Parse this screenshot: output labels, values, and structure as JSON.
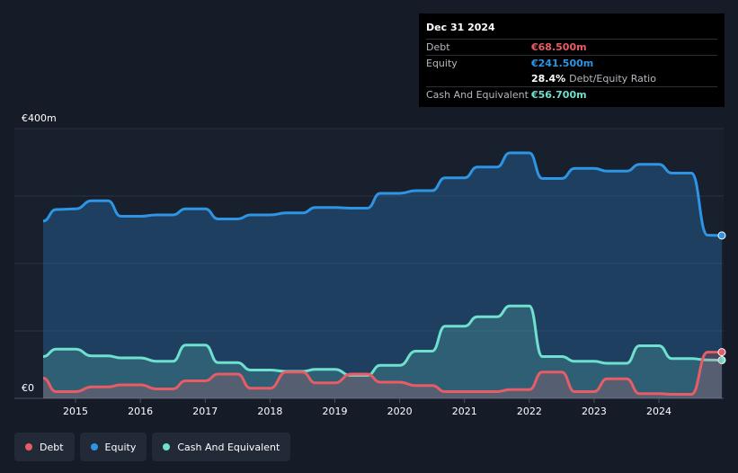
{
  "chart_data": {
    "type": "area",
    "ylabel_top": "€400m",
    "ylabel_bottom": "€0",
    "ylim": [
      0,
      400
    ],
    "x_ticks": [
      "2015",
      "2016",
      "2017",
      "2018",
      "2019",
      "2020",
      "2021",
      "2022",
      "2023",
      "2024"
    ],
    "x_range": [
      2014.5,
      2024.97
    ],
    "colors": {
      "debt": "#e85c66",
      "equity": "#2d95e3",
      "cash": "#6fe0cf"
    },
    "series": [
      {
        "name": "Equity",
        "key": "equity",
        "points": [
          [
            2014.5,
            263
          ],
          [
            2014.7,
            280
          ],
          [
            2015.0,
            281
          ],
          [
            2015.25,
            293
          ],
          [
            2015.5,
            293
          ],
          [
            2015.7,
            270
          ],
          [
            2016.0,
            270
          ],
          [
            2016.25,
            272
          ],
          [
            2016.5,
            272
          ],
          [
            2016.7,
            281
          ],
          [
            2017.0,
            281
          ],
          [
            2017.2,
            266
          ],
          [
            2017.5,
            266
          ],
          [
            2017.7,
            272
          ],
          [
            2018.0,
            272
          ],
          [
            2018.25,
            275
          ],
          [
            2018.5,
            275
          ],
          [
            2018.7,
            283
          ],
          [
            2019.0,
            283
          ],
          [
            2019.25,
            282
          ],
          [
            2019.5,
            282
          ],
          [
            2019.7,
            304
          ],
          [
            2020.0,
            304
          ],
          [
            2020.25,
            308
          ],
          [
            2020.5,
            308
          ],
          [
            2020.7,
            327
          ],
          [
            2021.0,
            327
          ],
          [
            2021.2,
            343
          ],
          [
            2021.5,
            343
          ],
          [
            2021.7,
            364
          ],
          [
            2022.0,
            364
          ],
          [
            2022.2,
            326
          ],
          [
            2022.5,
            326
          ],
          [
            2022.7,
            341
          ],
          [
            2023.0,
            341
          ],
          [
            2023.2,
            337
          ],
          [
            2023.5,
            337
          ],
          [
            2023.7,
            347
          ],
          [
            2024.0,
            347
          ],
          [
            2024.2,
            334
          ],
          [
            2024.5,
            334
          ],
          [
            2024.75,
            242
          ],
          [
            2024.97,
            241.5
          ]
        ]
      },
      {
        "name": "Cash And Equivalent",
        "key": "cash",
        "points": [
          [
            2014.5,
            62
          ],
          [
            2014.7,
            73
          ],
          [
            2015.0,
            73
          ],
          [
            2015.25,
            63
          ],
          [
            2015.5,
            63
          ],
          [
            2015.7,
            60
          ],
          [
            2016.0,
            60
          ],
          [
            2016.25,
            55
          ],
          [
            2016.5,
            55
          ],
          [
            2016.7,
            79
          ],
          [
            2017.0,
            79
          ],
          [
            2017.2,
            53
          ],
          [
            2017.5,
            53
          ],
          [
            2017.7,
            42
          ],
          [
            2018.0,
            42
          ],
          [
            2018.25,
            40
          ],
          [
            2018.5,
            40
          ],
          [
            2018.7,
            43
          ],
          [
            2019.0,
            43
          ],
          [
            2019.25,
            34
          ],
          [
            2019.5,
            34
          ],
          [
            2019.7,
            49
          ],
          [
            2020.0,
            49
          ],
          [
            2020.25,
            70
          ],
          [
            2020.5,
            70
          ],
          [
            2020.7,
            107
          ],
          [
            2021.0,
            107
          ],
          [
            2021.2,
            121
          ],
          [
            2021.5,
            121
          ],
          [
            2021.7,
            137
          ],
          [
            2022.0,
            137
          ],
          [
            2022.2,
            62
          ],
          [
            2022.5,
            62
          ],
          [
            2022.7,
            55
          ],
          [
            2023.0,
            55
          ],
          [
            2023.2,
            52
          ],
          [
            2023.5,
            52
          ],
          [
            2023.7,
            78
          ],
          [
            2024.0,
            78
          ],
          [
            2024.2,
            59
          ],
          [
            2024.5,
            59
          ],
          [
            2024.75,
            57
          ],
          [
            2024.97,
            56.7
          ]
        ]
      },
      {
        "name": "Debt",
        "key": "debt",
        "points": [
          [
            2014.5,
            30
          ],
          [
            2014.7,
            10
          ],
          [
            2015.0,
            10
          ],
          [
            2015.25,
            17
          ],
          [
            2015.5,
            17
          ],
          [
            2015.7,
            20
          ],
          [
            2016.0,
            20
          ],
          [
            2016.25,
            14
          ],
          [
            2016.5,
            14
          ],
          [
            2016.7,
            26
          ],
          [
            2017.0,
            26
          ],
          [
            2017.2,
            36
          ],
          [
            2017.5,
            36
          ],
          [
            2017.7,
            15
          ],
          [
            2018.0,
            15
          ],
          [
            2018.25,
            39
          ],
          [
            2018.5,
            39
          ],
          [
            2018.7,
            23
          ],
          [
            2019.0,
            23
          ],
          [
            2019.25,
            36
          ],
          [
            2019.5,
            36
          ],
          [
            2019.7,
            24
          ],
          [
            2020.0,
            24
          ],
          [
            2020.25,
            19
          ],
          [
            2020.5,
            19
          ],
          [
            2020.7,
            10
          ],
          [
            2021.0,
            10
          ],
          [
            2021.2,
            10
          ],
          [
            2021.5,
            10
          ],
          [
            2021.7,
            13
          ],
          [
            2022.0,
            13
          ],
          [
            2022.2,
            39
          ],
          [
            2022.5,
            39
          ],
          [
            2022.7,
            10
          ],
          [
            2023.0,
            10
          ],
          [
            2023.2,
            29
          ],
          [
            2023.5,
            29
          ],
          [
            2023.7,
            7
          ],
          [
            2024.0,
            7
          ],
          [
            2024.2,
            6
          ],
          [
            2024.5,
            6
          ],
          [
            2024.75,
            68.5
          ],
          [
            2024.97,
            68.5
          ]
        ]
      }
    ]
  },
  "tooltip": {
    "date": "Dec 31 2024",
    "debt_label": "Debt",
    "debt_value": "€68.500m",
    "equity_label": "Equity",
    "equity_value": "€241.500m",
    "ratio_value": "28.4%",
    "ratio_label": "Debt/Equity Ratio",
    "cash_label": "Cash And Equivalent",
    "cash_value": "€56.700m"
  },
  "legend": [
    {
      "key": "debt",
      "label": "Debt",
      "color": "#e85c66"
    },
    {
      "key": "equity",
      "label": "Equity",
      "color": "#2d95e3"
    },
    {
      "key": "cash",
      "label": "Cash And Equivalent",
      "color": "#6fe0cf"
    }
  ]
}
